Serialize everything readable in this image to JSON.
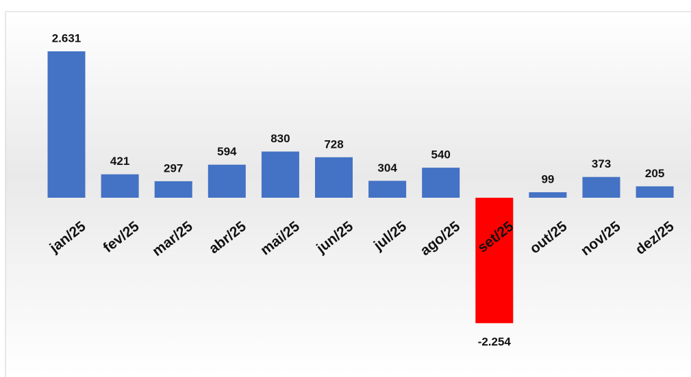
{
  "chart_data": {
    "type": "bar",
    "categories": [
      "jan/25",
      "fev/25",
      "mar/25",
      "abr/25",
      "mai/25",
      "jun/25",
      "jul/25",
      "ago/25",
      "set/25",
      "out/25",
      "nov/25",
      "dez/25"
    ],
    "values": [
      2631,
      421,
      297,
      594,
      830,
      728,
      304,
      540,
      -2254,
      99,
      373,
      205
    ],
    "value_labels": [
      "2.631",
      "421",
      "297",
      "594",
      "830",
      "728",
      "304",
      "540",
      "-2.254",
      "99",
      "373",
      "205"
    ],
    "colors": [
      "#4472c4",
      "#4472c4",
      "#4472c4",
      "#4472c4",
      "#4472c4",
      "#4472c4",
      "#4472c4",
      "#4472c4",
      "#ff0000",
      "#4472c4",
      "#4472c4",
      "#4472c4"
    ],
    "ylim": [
      -3000,
      3000
    ]
  }
}
